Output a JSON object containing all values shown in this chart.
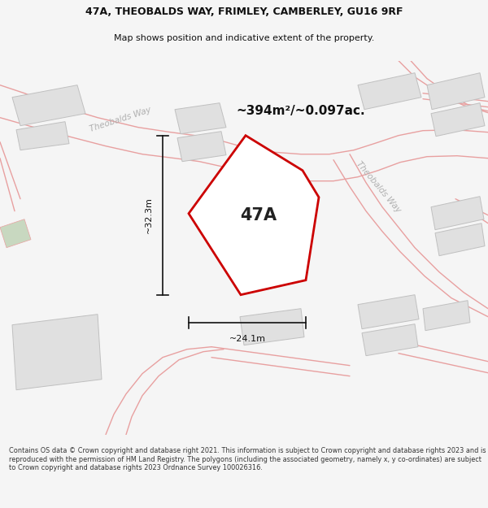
{
  "title_line1": "47A, THEOBALDS WAY, FRIMLEY, CAMBERLEY, GU16 9RF",
  "title_line2": "Map shows position and indicative extent of the property.",
  "area_text": "~394m²/~0.097ac.",
  "label_47a": "47A",
  "dim_height": "~32.3m",
  "dim_width": "~24.1m",
  "footer_text": "Contains OS data © Crown copyright and database right 2021. This information is subject to Crown copyright and database rights 2023 and is reproduced with the permission of HM Land Registry. The polygons (including the associated geometry, namely x, y co-ordinates) are subject to Crown copyright and database rights 2023 Ordnance Survey 100026316.",
  "bg_color": "#f5f5f5",
  "map_bg": "#ffffff",
  "road_color": "#e8a0a0",
  "road_label_color": "#b0b0b0",
  "building_color": "#e0e0e0",
  "building_edge": "#c0c0c0",
  "plot_fill": "#ffffff",
  "plot_edge": "#cc0000",
  "dim_color": "#111111",
  "title_color": "#111111",
  "area_text_color": "#111111",
  "green_color": "#c8d8c0",
  "footer_color": "#333333"
}
